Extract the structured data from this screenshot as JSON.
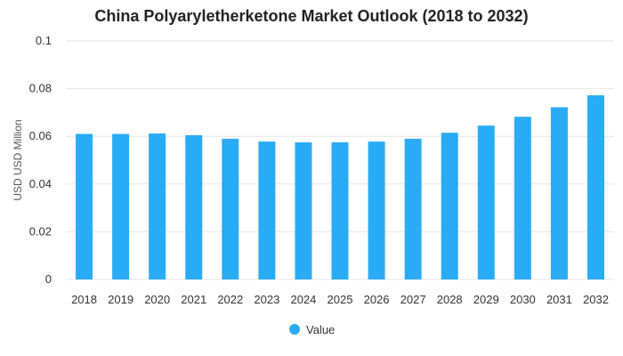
{
  "chart_data": {
    "type": "bar",
    "title": "China Polyaryletherketone Market Outlook (2018 to 2032)",
    "xlabel": "",
    "ylabel": "USD USD Million",
    "categories": [
      "2018",
      "2019",
      "2020",
      "2021",
      "2022",
      "2023",
      "2024",
      "2025",
      "2026",
      "2027",
      "2028",
      "2029",
      "2030",
      "2031",
      "2032"
    ],
    "series": [
      {
        "name": "Value",
        "color": "#2aabf5",
        "values": [
          0.061,
          0.061,
          0.0612,
          0.0605,
          0.059,
          0.0578,
          0.0575,
          0.0575,
          0.0578,
          0.059,
          0.0615,
          0.0645,
          0.0682,
          0.0722,
          0.0772
        ]
      }
    ],
    "yticks": [
      "0",
      "0.02",
      "0.04",
      "0.06",
      "0.08",
      "0.1"
    ],
    "ylim": [
      0,
      0.1
    ],
    "grid": true,
    "legend_position": "bottom-center"
  }
}
